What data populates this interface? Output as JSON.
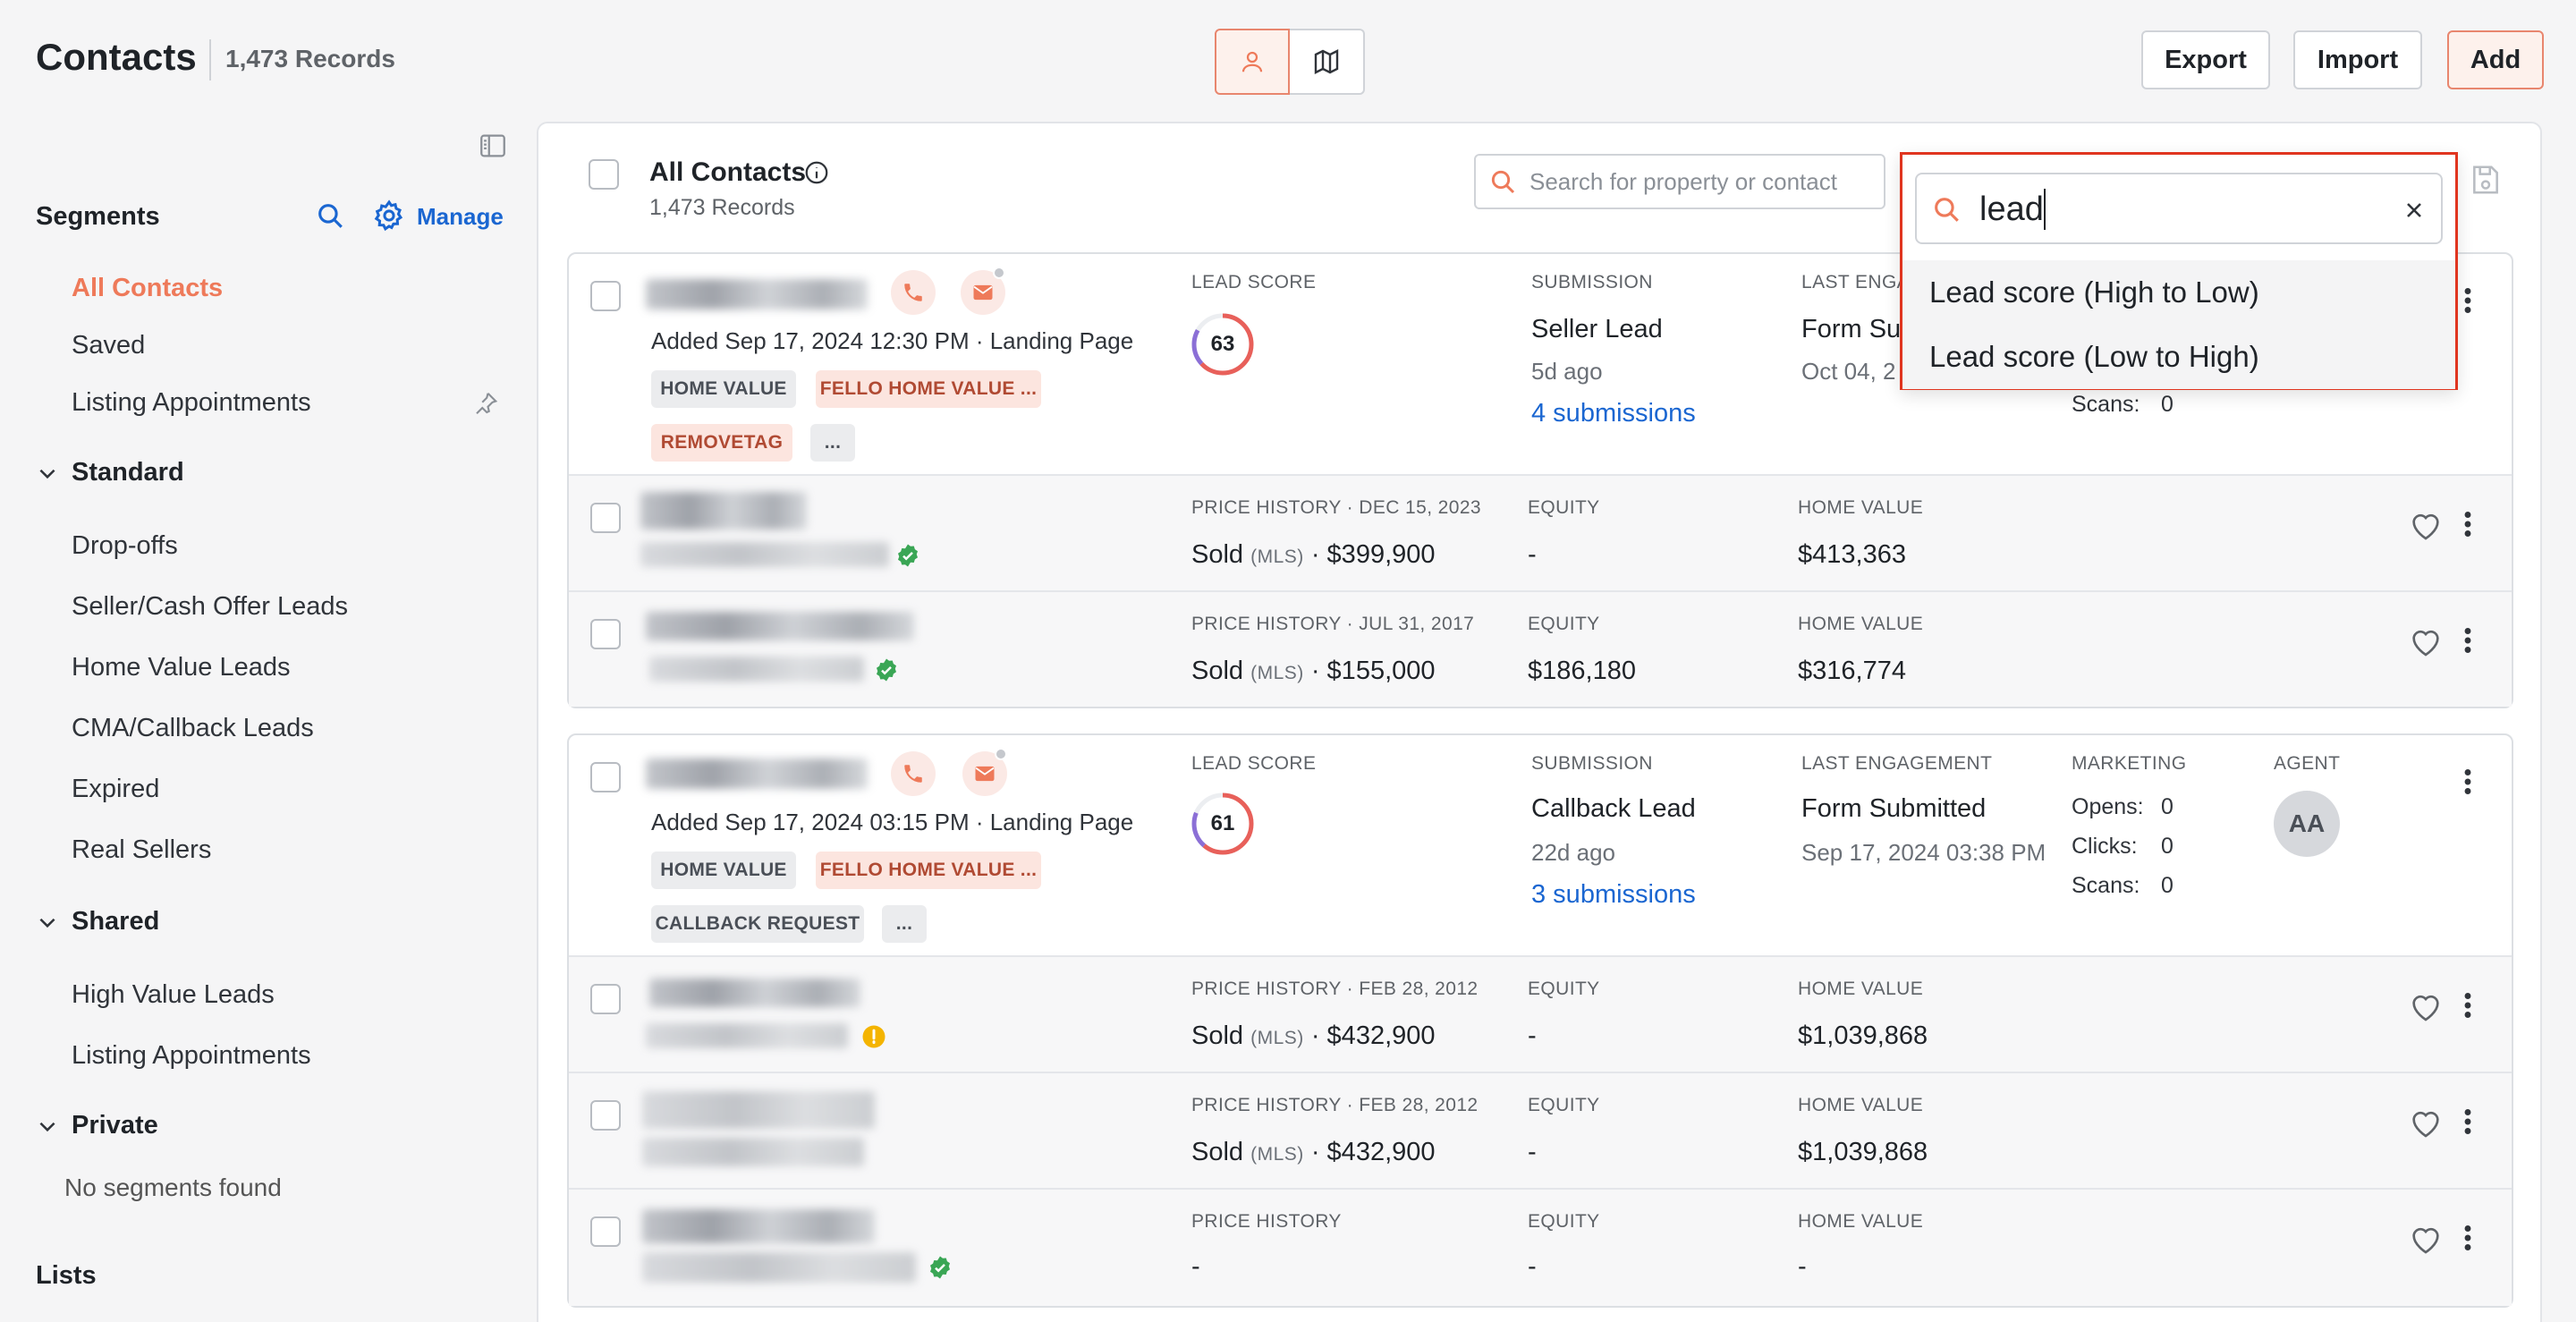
{
  "header": {
    "title": "Contacts",
    "record_count": "1,473 Records",
    "export_label": "Export",
    "import_label": "Import",
    "add_label": "Add"
  },
  "sidebar": {
    "segments_heading": "Segments",
    "manage_label": "Manage",
    "items": [
      "All Contacts",
      "Saved",
      "Listing Appointments"
    ],
    "standard_heading": "Standard",
    "standard_items": [
      "Drop-offs",
      "Seller/Cash Offer Leads",
      "Home Value Leads",
      "CMA/Callback Leads",
      "Expired",
      "Real Sellers"
    ],
    "shared_heading": "Shared",
    "shared_items": [
      "High Value Leads",
      "Listing Appointments"
    ],
    "private_heading": "Private",
    "private_empty": "No segments found",
    "lists_heading": "Lists"
  },
  "main": {
    "all_title": "All Contacts",
    "all_sub": "1,473 Records",
    "search_placeholder": "Search for property or contact"
  },
  "sort_dropdown": {
    "query": "lead",
    "options": [
      "Lead score (High to Low)",
      "Lead score (Low to High)"
    ]
  },
  "labels": {
    "lead_score": "LEAD SCORE",
    "submission": "SUBMISSION",
    "last_engagement": "LAST ENGAGEMENT",
    "last_engagement_cut": "LAST ENGA",
    "marketing": "MARKETING",
    "agent": "AGENT",
    "equity": "EQUITY",
    "home_value": "HOME VALUE",
    "opens": "Opens:",
    "clicks": "Clicks:",
    "scans": "Scans:",
    "sold": "Sold",
    "mls": "(MLS)"
  },
  "lead1": {
    "added": "Added Sep 17, 2024 12:30 PM  ·  Landing Page",
    "tags": [
      "HOME VALUE",
      "FELLO HOME VALUE ...",
      "REMOVETAG",
      "..."
    ],
    "score": 63,
    "submission": "Seller Lead",
    "submission_ago": "5d ago",
    "submissions_link": "4 submissions",
    "engagement_cut": "Form Su",
    "engagement_date_cut": "Oct 04, 2",
    "scans": "0"
  },
  "lead2": {
    "added": "Added Sep 17, 2024 03:15 PM  ·  Landing Page",
    "tags": [
      "HOME VALUE",
      "FELLO HOME VALUE ...",
      "CALLBACK REQUEST",
      "..."
    ],
    "score": 61,
    "submission": "Callback Lead",
    "submission_ago": "22d ago",
    "submissions_link": "3 submissions",
    "engagement": "Form Submitted",
    "engagement_date": "Sep 17, 2024 03:38 PM",
    "opens": "0",
    "clicks": "0",
    "scans": "0",
    "agent": "AA"
  },
  "properties": [
    {
      "price_history": "PRICE HISTORY · DEC 15, 2023",
      "price": "· $399,900",
      "equity": "-",
      "home_value": "$413,363"
    },
    {
      "price_history": "PRICE HISTORY · JUL 31, 2017",
      "price": "· $155,000",
      "equity": "$186,180",
      "home_value": "$316,774"
    },
    {
      "price_history": "PRICE HISTORY · FEB 28, 2012",
      "price": "· $432,900",
      "equity": "-",
      "home_value": "$1,039,868"
    },
    {
      "price_history": "PRICE HISTORY · FEB 28, 2012",
      "price": "· $432,900",
      "equity": "-",
      "home_value": "$1,039,868"
    },
    {
      "price_history": "PRICE HISTORY",
      "price": "-",
      "equity": "-",
      "home_value": "-"
    }
  ],
  "colors": {
    "accent": "#ee7a5a",
    "link": "#1a66d1",
    "highlight_border": "#e0351f",
    "verified": "#3aa655",
    "warning": "#f4b400"
  }
}
